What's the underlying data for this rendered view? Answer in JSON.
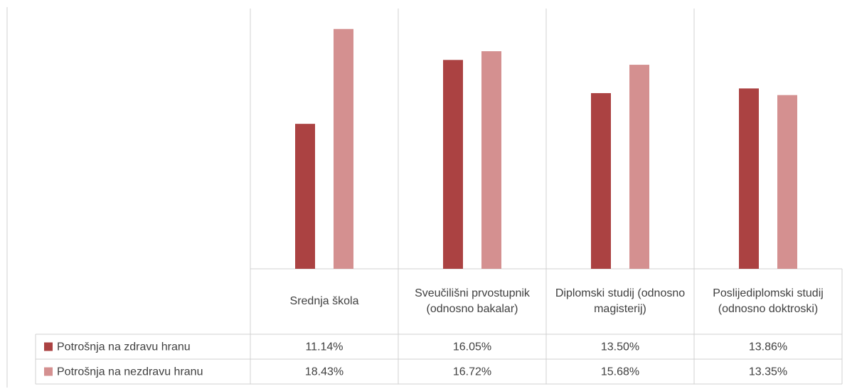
{
  "chart_data": {
    "type": "bar",
    "categories": [
      "Srednja škola",
      "Sveučilišni prvostupnik (odnosno bakalar)",
      "Diplomski studij (odnosno magisterij)",
      "Poslijediplomski studij (odnosno doktroski)"
    ],
    "series": [
      {
        "name": "Potrošnja na zdravu hranu",
        "color": "#ab4242",
        "values": [
          11.14,
          16.05,
          13.5,
          13.86
        ],
        "value_labels": [
          "11.14%",
          "16.05%",
          "13.50%",
          "13.86%"
        ]
      },
      {
        "name": "Potrošnja na nezdravu hranu",
        "color": "#d49090",
        "values": [
          18.43,
          16.72,
          15.68,
          13.35
        ],
        "value_labels": [
          "18.43%",
          "16.72%",
          "15.68%",
          "13.35%"
        ]
      }
    ],
    "ylim": [
      0,
      20
    ]
  }
}
